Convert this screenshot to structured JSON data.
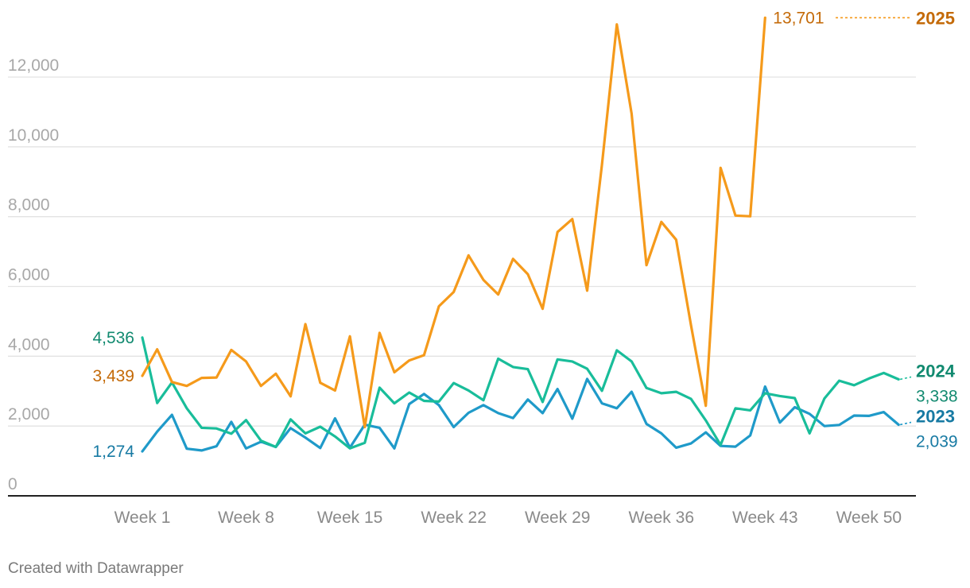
{
  "chart_data": {
    "type": "line",
    "title": "",
    "xlabel": "",
    "ylabel": "",
    "ylim": [
      0,
      13701
    ],
    "yticks": [
      0,
      2000,
      4000,
      6000,
      8000,
      10000,
      12000
    ],
    "ytick_labels": [
      "0",
      "2,000",
      "4,000",
      "6,000",
      "8,000",
      "10,000",
      "12,000"
    ],
    "xtick_weeks": [
      1,
      8,
      15,
      22,
      29,
      36,
      43,
      50
    ],
    "xtick_labels": [
      "Week 1",
      "Week 8",
      "Week 15",
      "Week 22",
      "Week 29",
      "Week 36",
      "Week 43",
      "Week 50"
    ],
    "grid": true,
    "series": [
      {
        "name": "2023",
        "color": "#1f9ac9",
        "label_color": "#177aa3",
        "start_label": "1,274",
        "end_label": "2,039",
        "values": [
          1274,
          1840,
          2320,
          1350,
          1300,
          1420,
          2120,
          1360,
          1550,
          1400,
          1940,
          1670,
          1370,
          2220,
          1380,
          2040,
          1950,
          1360,
          2630,
          2920,
          2600,
          1970,
          2380,
          2600,
          2370,
          2230,
          2760,
          2370,
          3060,
          2210,
          3350,
          2650,
          2510,
          2980,
          2060,
          1790,
          1380,
          1500,
          1820,
          1430,
          1410,
          1730,
          3130,
          2100,
          2540,
          2350,
          2000,
          2030,
          2300,
          2290,
          2400,
          2039
        ]
      },
      {
        "name": "2024",
        "color": "#19bd9a",
        "label_color": "#128a70",
        "start_label": "4,536",
        "end_label": "3,338",
        "values": [
          4536,
          2660,
          3250,
          2510,
          1950,
          1930,
          1780,
          2170,
          1580,
          1400,
          2190,
          1790,
          1980,
          1700,
          1360,
          1520,
          3100,
          2650,
          2960,
          2720,
          2700,
          3230,
          3020,
          2740,
          3930,
          3690,
          3630,
          2690,
          3910,
          3850,
          3640,
          3010,
          4170,
          3850,
          3090,
          2940,
          2980,
          2780,
          2160,
          1460,
          2510,
          2450,
          2940,
          2860,
          2800,
          1790,
          2790,
          3300,
          3170,
          3360,
          3520,
          3338
        ]
      },
      {
        "name": "2025",
        "color": "#f59a1b",
        "label_color": "#c46a08",
        "start_label": "3,439",
        "end_label": "13,701",
        "values": [
          3439,
          4200,
          3260,
          3150,
          3380,
          3390,
          4180,
          3850,
          3150,
          3500,
          2850,
          4920,
          3240,
          3020,
          4570,
          1970,
          4670,
          3540,
          3880,
          4030,
          5430,
          5840,
          6890,
          6190,
          5770,
          6790,
          6350,
          5360,
          7560,
          7930,
          5880,
          9490,
          13510,
          10950,
          6610,
          7850,
          7340,
          4900,
          2580,
          9400,
          8030,
          8010,
          13701
        ]
      }
    ]
  },
  "footer": "Created with Datawrapper"
}
